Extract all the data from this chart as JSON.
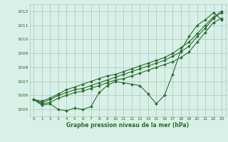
{
  "x": [
    0,
    1,
    2,
    3,
    4,
    5,
    6,
    7,
    8,
    9,
    10,
    11,
    12,
    13,
    14,
    15,
    16,
    17,
    18,
    19,
    20,
    21,
    22,
    23
  ],
  "line1": [
    1005.7,
    1005.3,
    1005.4,
    1005.0,
    1004.9,
    1005.1,
    1005.0,
    1005.2,
    1006.2,
    1006.7,
    1007.0,
    1006.9,
    1006.8,
    1006.7,
    1006.1,
    1005.4,
    1006.0,
    1007.5,
    1009.2,
    1010.2,
    1011.0,
    1011.4,
    1011.9,
    1011.4
  ],
  "line2": [
    1005.7,
    1005.4,
    1005.5,
    1005.8,
    1006.0,
    1006.2,
    1006.3,
    1006.5,
    1006.7,
    1006.9,
    1007.1,
    1007.2,
    1007.4,
    1007.6,
    1007.8,
    1008.0,
    1008.2,
    1008.4,
    1008.7,
    1009.1,
    1009.8,
    1010.5,
    1011.2,
    1011.5
  ],
  "line3": [
    1005.7,
    1005.5,
    1005.7,
    1006.0,
    1006.2,
    1006.4,
    1006.5,
    1006.7,
    1006.9,
    1007.1,
    1007.3,
    1007.5,
    1007.7,
    1007.9,
    1008.1,
    1008.3,
    1008.5,
    1008.8,
    1009.1,
    1009.5,
    1010.2,
    1010.8,
    1011.5,
    1011.9
  ],
  "line4": [
    1005.7,
    1005.6,
    1005.8,
    1006.1,
    1006.4,
    1006.6,
    1006.8,
    1007.0,
    1007.2,
    1007.4,
    1007.5,
    1007.7,
    1007.9,
    1008.1,
    1008.3,
    1008.5,
    1008.7,
    1009.0,
    1009.4,
    1009.8,
    1010.4,
    1011.0,
    1011.6,
    1012.0
  ],
  "line_color": "#2d6b2d",
  "bg_color": "#d8f0e8",
  "grid_color": "#a8c8b8",
  "ylim": [
    1004.5,
    1012.5
  ],
  "xlim": [
    -0.5,
    23.5
  ],
  "yticks": [
    1005,
    1006,
    1007,
    1008,
    1009,
    1010,
    1011,
    1012
  ],
  "xticks": [
    0,
    1,
    2,
    3,
    4,
    5,
    6,
    7,
    8,
    9,
    10,
    11,
    12,
    13,
    14,
    15,
    16,
    17,
    18,
    19,
    20,
    21,
    22,
    23
  ],
  "xlabel": "Graphe pression niveau de la mer (hPa)",
  "markersize": 2.0,
  "linewidth": 0.8
}
